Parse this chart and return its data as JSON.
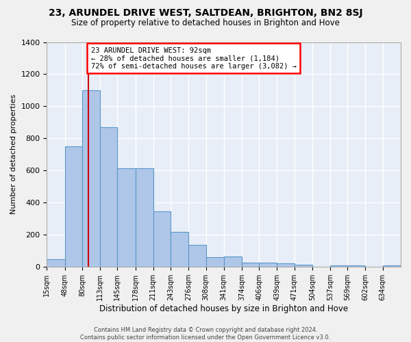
{
  "title": "23, ARUNDEL DRIVE WEST, SALTDEAN, BRIGHTON, BN2 8SJ",
  "subtitle": "Size of property relative to detached houses in Brighton and Hove",
  "xlabel": "Distribution of detached houses by size in Brighton and Hove",
  "ylabel": "Number of detached properties",
  "footer1": "Contains HM Land Registry data © Crown copyright and database right 2024.",
  "footer2": "Contains public sector information licensed under the Open Government Licence v3.0.",
  "property_size": 92,
  "annotation_line1": "23 ARUNDEL DRIVE WEST: 92sqm",
  "annotation_line2": "← 28% of detached houses are smaller (1,184)",
  "annotation_line3": "72% of semi-detached houses are larger (3,082) →",
  "bar_color": "#aec6e8",
  "bar_edge_color": "#5a96c8",
  "ref_line_color": "#cc0000",
  "background_color": "#e8eef7",
  "grid_color": "#ffffff",
  "bins": [
    15,
    48,
    80,
    113,
    145,
    178,
    211,
    243,
    276,
    308,
    341,
    374,
    406,
    439,
    471,
    504,
    537,
    569,
    602,
    634,
    667
  ],
  "counts": [
    47,
    748,
    1100,
    870,
    615,
    615,
    345,
    218,
    135,
    60,
    65,
    25,
    25,
    20,
    12,
    0,
    10,
    10,
    0,
    10
  ],
  "ylim": [
    0,
    1400
  ],
  "yticks": [
    0,
    200,
    400,
    600,
    800,
    1000,
    1200,
    1400
  ]
}
